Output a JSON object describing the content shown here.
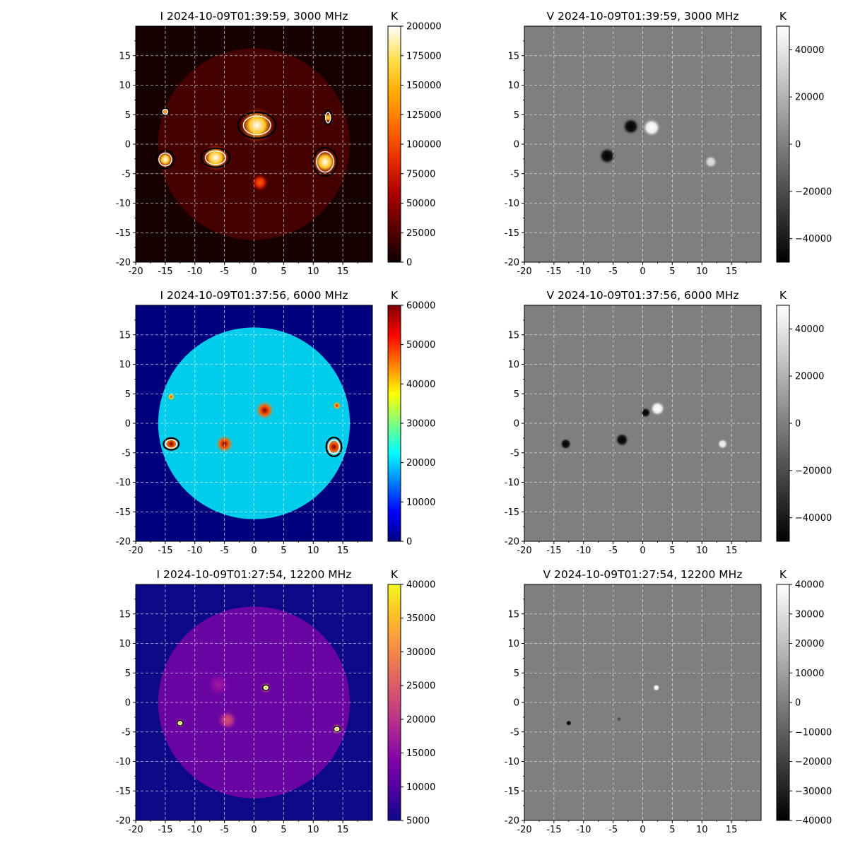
{
  "figure": {
    "panels": [
      {
        "id": "i3000",
        "kind": "intensity",
        "cmap": "hot",
        "title": "I 2024-10-09T01:39:59, 3000 MHz",
        "colorbar": {
          "unit": "K",
          "min": 0,
          "max": 200000,
          "ticks": [
            "0",
            "25000",
            "50000",
            "75000",
            "100000",
            "125000",
            "150000",
            "175000",
            "200000"
          ]
        },
        "sources": [
          {
            "x": 0.5,
            "y": 3.2,
            "r": 3.0,
            "v": 1.0
          },
          {
            "x": 12.0,
            "y": -3.0,
            "r": 2.2,
            "v": 1.0
          },
          {
            "x": -6.5,
            "y": -2.3,
            "r": 2.3,
            "v": 1.0
          },
          {
            "x": -15.0,
            "y": -2.6,
            "r": 1.4,
            "v": 1.0
          },
          {
            "x": 12.5,
            "y": 4.5,
            "r": 0.8,
            "v": 0.85
          },
          {
            "x": -15.0,
            "y": 5.5,
            "r": 0.6,
            "v": 0.8
          },
          {
            "x": 1.0,
            "y": -6.5,
            "r": 1.5,
            "v": 0.55
          }
        ],
        "contours": [
          {
            "x": 0.5,
            "y": 3.2,
            "rx": 3.2,
            "ry": 2.2
          },
          {
            "x": 12.0,
            "y": -3.0,
            "rx": 2.0,
            "ry": 2.4
          },
          {
            "x": -6.5,
            "y": -2.3,
            "rx": 2.4,
            "ry": 1.6
          },
          {
            "x": -15.0,
            "y": -2.6,
            "rx": 1.5,
            "ry": 1.5
          },
          {
            "x": 12.5,
            "y": 4.5,
            "rx": 0.6,
            "ry": 1.2
          },
          {
            "x": -15.0,
            "y": 5.5,
            "rx": 0.6,
            "ry": 0.6
          }
        ]
      },
      {
        "id": "v3000",
        "kind": "stokes-v",
        "cmap": "gray",
        "title": "V 2024-10-09T01:39:59, 3000 MHz",
        "colorbar": {
          "unit": "K",
          "min": -50000,
          "max": 50000,
          "ticks": [
            "−40000",
            "−20000",
            "0",
            "20000",
            "40000"
          ],
          "tick_values": [
            -40000,
            -20000,
            0,
            20000,
            40000
          ]
        },
        "sources": [
          {
            "x": 1.5,
            "y": 2.8,
            "r": 1.6,
            "v": 1.0
          },
          {
            "x": -2.0,
            "y": 3.0,
            "r": 1.5,
            "v": -1.0
          },
          {
            "x": -6.0,
            "y": -2.0,
            "r": 1.5,
            "v": -1.0
          },
          {
            "x": 11.5,
            "y": -3.0,
            "r": 1.1,
            "v": 0.75
          }
        ]
      },
      {
        "id": "i6000",
        "kind": "intensity",
        "cmap": "jet",
        "title": "I 2024-10-09T01:37:56, 6000 MHz",
        "colorbar": {
          "unit": "K",
          "min": 0,
          "max": 60000,
          "ticks": [
            "0",
            "10000",
            "20000",
            "30000",
            "40000",
            "50000",
            "60000"
          ]
        },
        "sources": [
          {
            "x": 1.8,
            "y": 2.2,
            "r": 1.8,
            "v": 1.0
          },
          {
            "x": 13.5,
            "y": -4.0,
            "r": 1.6,
            "v": 1.0
          },
          {
            "x": -5.0,
            "y": -3.5,
            "r": 1.7,
            "v": 1.0
          },
          {
            "x": -14.0,
            "y": -3.5,
            "r": 1.4,
            "v": 1.0
          },
          {
            "x": 14.0,
            "y": 3.0,
            "r": 0.8,
            "v": 0.9
          },
          {
            "x": -14.0,
            "y": 4.5,
            "r": 0.7,
            "v": 0.85
          }
        ],
        "contours": [
          {
            "x": -14.0,
            "y": -3.5,
            "rx": 1.3,
            "ry": 1.0
          },
          {
            "x": 13.5,
            "y": -4.0,
            "rx": 1.3,
            "ry": 1.6
          }
        ]
      },
      {
        "id": "v6000",
        "kind": "stokes-v",
        "cmap": "gray",
        "title": "V 2024-10-09T01:37:56, 6000 MHz",
        "colorbar": {
          "unit": "K",
          "min": -50000,
          "max": 50000,
          "ticks": [
            "−40000",
            "−20000",
            "0",
            "20000",
            "40000"
          ],
          "tick_values": [
            -40000,
            -20000,
            0,
            20000,
            40000
          ]
        },
        "sources": [
          {
            "x": 2.5,
            "y": 2.5,
            "r": 1.3,
            "v": 1.0
          },
          {
            "x": 0.5,
            "y": 1.8,
            "r": 0.9,
            "v": -1.0
          },
          {
            "x": -3.5,
            "y": -2.8,
            "r": 1.2,
            "v": -1.0
          },
          {
            "x": -13.0,
            "y": -3.5,
            "r": 1.0,
            "v": -1.0
          },
          {
            "x": 13.5,
            "y": -3.5,
            "r": 0.9,
            "v": 0.9
          }
        ]
      },
      {
        "id": "i12200",
        "kind": "intensity",
        "cmap": "plasma",
        "title": "I 2024-10-09T01:27:54, 12200 MHz",
        "colorbar": {
          "unit": "K",
          "min": 5000,
          "max": 40000,
          "ticks": [
            "5000",
            "10000",
            "15000",
            "20000",
            "25000",
            "30000",
            "35000",
            "40000"
          ]
        },
        "sources": [
          {
            "x": 2.0,
            "y": 2.5,
            "r": 0.9,
            "v": 1.0
          },
          {
            "x": 14.0,
            "y": -4.5,
            "r": 0.9,
            "v": 1.0
          },
          {
            "x": -12.5,
            "y": -3.5,
            "r": 0.8,
            "v": 1.0
          },
          {
            "x": -4.5,
            "y": -3.0,
            "r": 1.8,
            "v": 0.55
          },
          {
            "x": -6.0,
            "y": 3.0,
            "r": 2.5,
            "v": 0.35
          }
        ],
        "contours": [
          {
            "x": 2.0,
            "y": 2.5,
            "rx": 0.5,
            "ry": 0.4
          },
          {
            "x": 14.0,
            "y": -4.5,
            "rx": 0.5,
            "ry": 0.4
          },
          {
            "x": -12.5,
            "y": -3.5,
            "rx": 0.45,
            "ry": 0.4
          }
        ]
      },
      {
        "id": "v12200",
        "kind": "stokes-v",
        "cmap": "gray",
        "title": "V 2024-10-09T01:27:54, 12200 MHz",
        "colorbar": {
          "unit": "K",
          "min": -40000,
          "max": 40000,
          "ticks": [
            "−40000",
            "−30000",
            "−20000",
            "−10000",
            "0",
            "10000",
            "20000",
            "30000",
            "40000"
          ],
          "tick_values": [
            -40000,
            -30000,
            -20000,
            -10000,
            0,
            10000,
            20000,
            30000,
            40000
          ]
        },
        "sources": [
          {
            "x": 2.3,
            "y": 2.5,
            "r": 0.6,
            "v": 1.0
          },
          {
            "x": -12.5,
            "y": -3.5,
            "r": 0.5,
            "v": -1.0
          },
          {
            "x": -4.0,
            "y": -2.8,
            "r": 0.4,
            "v": -0.4
          }
        ]
      }
    ],
    "axes": {
      "xlim": [
        -20,
        20
      ],
      "ylim": [
        -20,
        20
      ],
      "x_tick_labels": [
        "-20",
        "-15",
        "-10",
        "-5",
        "0",
        "5",
        "10",
        "15"
      ],
      "y_tick_labels": [
        "-20",
        "-15",
        "-10",
        "-5",
        "0",
        "5",
        "10",
        "15"
      ],
      "grid": true,
      "grid_style": "dashed"
    }
  },
  "chart_data": [
    {
      "type": "heatmap",
      "title": "I 2024-10-09T01:39:59, 3000 MHz",
      "xlim": [
        -20,
        20
      ],
      "ylim": [
        -20,
        20
      ],
      "colorbar_unit": "K",
      "colorbar_range": [
        0,
        200000
      ],
      "colormap": "hot"
    },
    {
      "type": "heatmap",
      "title": "V 2024-10-09T01:39:59, 3000 MHz",
      "xlim": [
        -20,
        20
      ],
      "ylim": [
        -20,
        20
      ],
      "colorbar_unit": "K",
      "colorbar_range": [
        -50000,
        50000
      ],
      "colormap": "gray"
    },
    {
      "type": "heatmap",
      "title": "I 2024-10-09T01:37:56, 6000 MHz",
      "xlim": [
        -20,
        20
      ],
      "ylim": [
        -20,
        20
      ],
      "colorbar_unit": "K",
      "colorbar_range": [
        0,
        60000
      ],
      "colormap": "jet"
    },
    {
      "type": "heatmap",
      "title": "V 2024-10-09T01:37:56, 6000 MHz",
      "xlim": [
        -20,
        20
      ],
      "ylim": [
        -20,
        20
      ],
      "colorbar_unit": "K",
      "colorbar_range": [
        -50000,
        50000
      ],
      "colormap": "gray"
    },
    {
      "type": "heatmap",
      "title": "I 2024-10-09T01:27:54, 12200 MHz",
      "xlim": [
        -20,
        20
      ],
      "ylim": [
        -20,
        20
      ],
      "colorbar_unit": "K",
      "colorbar_range": [
        5000,
        40000
      ],
      "colormap": "plasma"
    },
    {
      "type": "heatmap",
      "title": "V 2024-10-09T01:27:54, 12200 MHz",
      "xlim": [
        -20,
        20
      ],
      "ylim": [
        -20,
        20
      ],
      "colorbar_unit": "K",
      "colorbar_range": [
        -40000,
        40000
      ],
      "colormap": "gray"
    }
  ],
  "colors": {
    "grid": "#ffffff",
    "axis": "#000000",
    "contour_outer": "#000000",
    "contour_inner": "#ffffff"
  }
}
